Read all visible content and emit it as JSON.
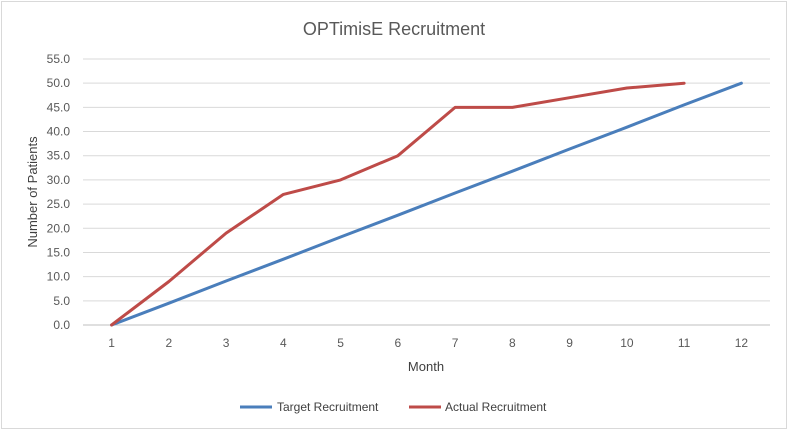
{
  "chart_data": {
    "type": "line",
    "title": "OPTimisE Recruitment",
    "xlabel": "Month",
    "ylabel": "Number of Patients",
    "x": [
      1,
      2,
      3,
      4,
      5,
      6,
      7,
      8,
      9,
      10,
      11,
      12
    ],
    "ylim": [
      0,
      55
    ],
    "yticks": [
      "0.0",
      "5.0",
      "10.0",
      "15.0",
      "20.0",
      "25.0",
      "30.0",
      "35.0",
      "40.0",
      "45.0",
      "50.0",
      "55.0"
    ],
    "grid": true,
    "legend_position": "bottom",
    "series": [
      {
        "name": "Target Recruitment",
        "color": "#4a7ebb",
        "values": [
          0,
          4.5,
          9.1,
          13.6,
          18.2,
          22.7,
          27.3,
          31.8,
          36.4,
          40.9,
          45.5,
          50
        ]
      },
      {
        "name": "Actual Recruitment",
        "color": "#be4b48",
        "values": [
          0,
          9,
          19,
          27,
          30,
          35,
          45,
          45,
          47,
          49,
          50,
          null
        ]
      }
    ]
  }
}
